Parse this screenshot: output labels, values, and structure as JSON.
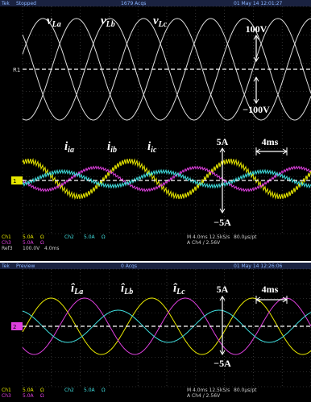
{
  "screens": [
    {
      "header": {
        "brand": "Tek",
        "status": "Stopped",
        "acqs": "1679 Acqs",
        "timestamp": "01 May 14 12:01:27"
      },
      "markers": [
        "R1",
        "1"
      ],
      "labels": [
        {
          "main": "v",
          "sub": "La"
        },
        {
          "main": "v",
          "sub": "Lb"
        },
        {
          "main": "v",
          "sub": "Lc"
        },
        {
          "main": "i",
          "sub": "ia"
        },
        {
          "main": "i",
          "sub": "ib"
        },
        {
          "main": "i",
          "sub": "ic"
        }
      ],
      "annotations": [
        "100V",
        "−100V",
        "5A",
        "4ms",
        "−5A"
      ],
      "footer": [
        "Ch1",
        "5.0A",
        "Ω",
        "Ch2",
        "5.0A",
        "Ω",
        "M 4.0ms 12.5kS/s",
        "80.0µs/pt",
        "Ch3",
        "5.0A",
        "Ω",
        "A  Ch4  /  2.56V",
        "Ref3",
        "100.0V",
        "4.0ms"
      ]
    },
    {
      "header": {
        "brand": "Tek",
        "status": "Preview",
        "acqs": "0 Acqs",
        "timestamp": "01 May 14 12:26:06"
      },
      "markers": [
        "2"
      ],
      "labels": [
        {
          "main": "î",
          "sub": "La"
        },
        {
          "main": "î",
          "sub": "Lb"
        },
        {
          "main": "î",
          "sub": "Lc"
        }
      ],
      "annotations": [
        "5A",
        "4ms",
        "−5A"
      ],
      "footer": [
        "Ch1",
        "5.0A",
        "Ω",
        "Ch2",
        "5.0A",
        "Ω",
        "M 4.0ms 12.5kS/s",
        "80.0µs/pt",
        "Ch3",
        "5.0A",
        "Ω",
        "A  Ch4  /  2.56V"
      ]
    }
  ]
}
